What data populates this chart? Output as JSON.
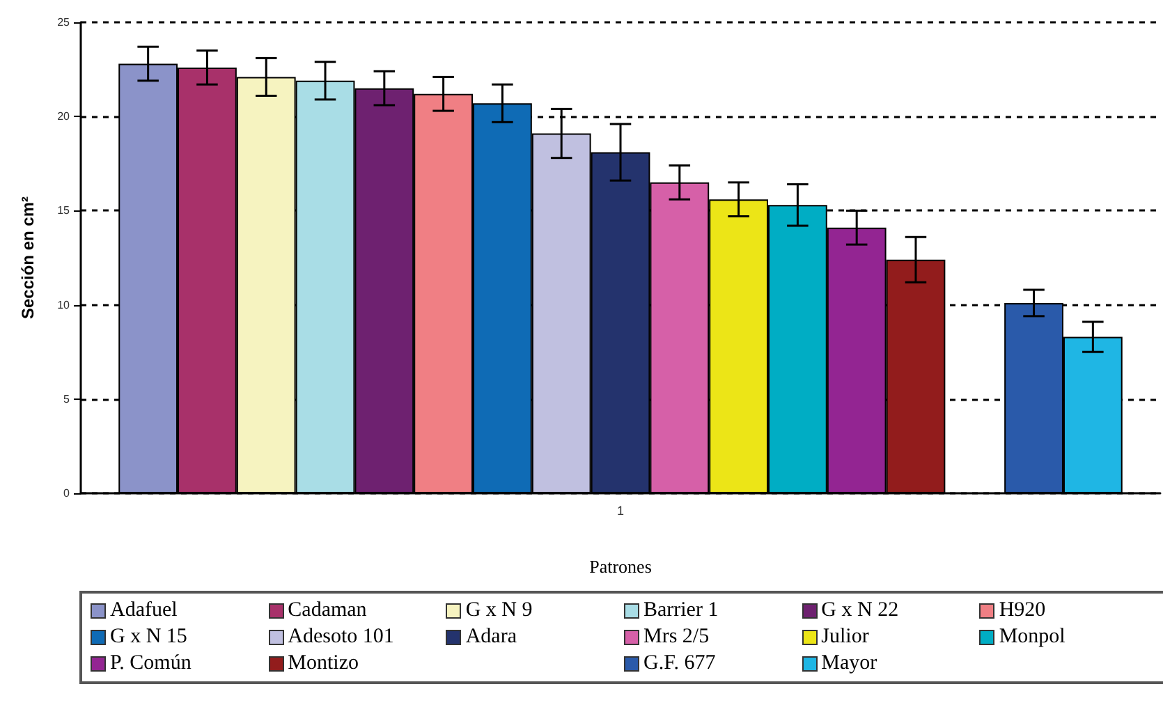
{
  "chart_data": {
    "type": "bar",
    "xlabel": "Patrones",
    "ylabel": "Sección en cm²",
    "categories": [
      "1"
    ],
    "ylim": [
      0,
      25
    ],
    "yticks": [
      0,
      5,
      10,
      15,
      20,
      25
    ],
    "grid": "y",
    "legend": "bottom",
    "series": [
      {
        "name": "Adafuel",
        "color": "#8b93c9",
        "values": [
          22.8
        ],
        "errors": [
          0.9
        ]
      },
      {
        "name": "Cadaman",
        "color": "#a8316a",
        "values": [
          22.6
        ],
        "errors": [
          0.9
        ]
      },
      {
        "name": "G x N 9",
        "color": "#f6f3c0",
        "values": [
          22.1
        ],
        "errors": [
          1.0
        ]
      },
      {
        "name": "Barrier 1",
        "color": "#a9dde6",
        "values": [
          21.9
        ],
        "errors": [
          1.0
        ]
      },
      {
        "name": "G x N 22",
        "color": "#6e2170",
        "values": [
          21.5
        ],
        "errors": [
          0.9
        ]
      },
      {
        "name": "H920",
        "color": "#f07f84",
        "values": [
          21.2
        ],
        "errors": [
          0.9
        ]
      },
      {
        "name": "G x N 15",
        "color": "#0f6bb5",
        "values": [
          20.7
        ],
        "errors": [
          1.0
        ]
      },
      {
        "name": "Adesoto 101",
        "color": "#c0c0e0",
        "values": [
          19.1
        ],
        "errors": [
          1.3
        ]
      },
      {
        "name": "Adara",
        "color": "#24336d",
        "values": [
          18.1
        ],
        "errors": [
          1.5
        ]
      },
      {
        "name": "Mrs 2/5",
        "color": "#d660a8",
        "values": [
          16.5
        ],
        "errors": [
          0.9
        ]
      },
      {
        "name": "Julior",
        "color": "#ece517",
        "values": [
          15.6
        ],
        "errors": [
          0.9
        ]
      },
      {
        "name": "Monpol",
        "color": "#00adc4",
        "values": [
          15.3
        ],
        "errors": [
          1.1
        ]
      },
      {
        "name": "P. Común",
        "color": "#932592",
        "values": [
          14.1
        ],
        "errors": [
          0.9
        ]
      },
      {
        "name": "Montizo",
        "color": "#921c1c",
        "values": [
          12.4
        ],
        "errors": [
          1.2
        ]
      },
      {
        "values": [
          null
        ]
      },
      {
        "name": "G.F. 677",
        "color": "#2a5aaa",
        "values": [
          10.1
        ],
        "errors": [
          0.7
        ]
      },
      {
        "name": "Mayor",
        "color": "#1fb6e4",
        "values": [
          8.3
        ],
        "errors": [
          0.8
        ]
      }
    ]
  }
}
